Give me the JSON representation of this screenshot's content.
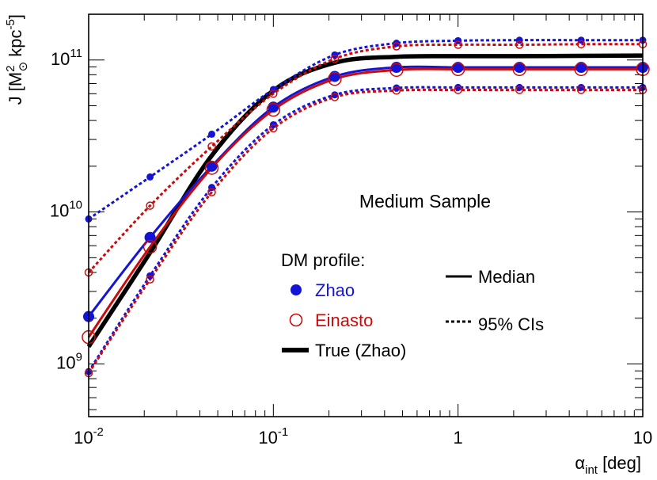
{
  "chart_data": {
    "type": "line",
    "title": "Medium Sample",
    "xscale": "log",
    "yscale": "log",
    "xlim": [
      0.01,
      10
    ],
    "ylim": [
      450000000,
      200000000000
    ],
    "xlabel": {
      "main": "α",
      "sub": "int",
      "rest": " [deg]"
    },
    "ylabel": {
      "pre": "J [M",
      "sup": "2",
      "sub": "⊙",
      "mid": " kpc",
      "sup2": "-5",
      "post": "]"
    },
    "xticks": [
      {
        "value": 0.01,
        "base": "10",
        "exp": "-2"
      },
      {
        "value": 0.1,
        "base": "10",
        "exp": "-1"
      },
      {
        "value": 1,
        "base": "1",
        "exp": ""
      },
      {
        "value": 10,
        "base": "10",
        "exp": ""
      }
    ],
    "yticks": [
      {
        "value": 1000000000,
        "base": "10",
        "exp": "9"
      },
      {
        "value": 10000000000,
        "base": "10",
        "exp": "10"
      },
      {
        "value": 100000000000,
        "base": "10",
        "exp": "11"
      }
    ],
    "x": [
      0.01,
      0.0215,
      0.0464,
      0.1,
      0.215,
      0.464,
      1,
      2.15,
      4.64,
      10
    ],
    "series": [
      {
        "name": "Zhao median",
        "profile": "Zhao",
        "kind": "median",
        "color": "#1414d8",
        "values": [
          2050000000.0,
          6800000000.0,
          20000000000.0,
          49000000000.0,
          78000000000.0,
          89500000000.0,
          89500000000.0,
          89500000000.0,
          89500000000.0,
          89500000000.0
        ]
      },
      {
        "name": "Zhao 95% CI upper",
        "profile": "Zhao",
        "kind": "ci",
        "color": "#1414d8",
        "values": [
          9000000000.0,
          17000000000.0,
          32500000000.0,
          64000000000.0,
          108000000000.0,
          129000000000.0,
          134000000000.0,
          135000000000.0,
          135000000000.0,
          135000000000.0
        ]
      },
      {
        "name": "Zhao 95% CI lower",
        "profile": "Zhao",
        "kind": "ci",
        "color": "#1414d8",
        "values": [
          890000000.0,
          3800000000.0,
          14500000000.0,
          37500000000.0,
          59000000000.0,
          65500000000.0,
          66000000000.0,
          66000000000.0,
          66000000000.0,
          66000000000.0
        ]
      },
      {
        "name": "Einasto median",
        "profile": "Einasto",
        "kind": "median",
        "color": "#cc0a0a",
        "values": [
          1500000000.0,
          5900000000.0,
          19500000000.0,
          47000000000.0,
          75000000000.0,
          86000000000.0,
          87000000000.0,
          87000000000.0,
          87000000000.0,
          87000000000.0
        ]
      },
      {
        "name": "Einasto 95% CI upper",
        "profile": "Einasto",
        "kind": "ci",
        "color": "#cc0a0a",
        "values": [
          4000000000.0,
          11000000000.0,
          27000000000.0,
          60000000000.0,
          102000000000.0,
          123000000000.0,
          126000000000.0,
          126000000000.0,
          127000000000.0,
          127000000000.0
        ]
      },
      {
        "name": "Einasto 95% CI lower",
        "profile": "Einasto",
        "kind": "ci",
        "color": "#cc0a0a",
        "values": [
          870000000.0,
          3600000000.0,
          13500000000.0,
          35500000000.0,
          57000000000.0,
          63000000000.0,
          63500000000.0,
          63500000000.0,
          63500000000.0,
          63500000000.0
        ]
      }
    ],
    "true_curve": {
      "name": "True (Zhao)",
      "color": "#000000",
      "x": [
        0.01,
        0.0215,
        0.0464,
        0.1,
        0.215,
        0.464,
        1,
        2.15,
        4.64,
        10
      ],
      "values": [
        1300000000.0,
        5400000000.0,
        23500000000.0,
        63000000000.0,
        96000000000.0,
        105000000000.0,
        106000000000.0,
        106000000000.0,
        106500000000.0,
        107000000000.0
      ]
    },
    "legend": {
      "header": "DM profile:",
      "zhao": "Zhao",
      "einasto": "Einasto",
      "true": "True (Zhao)",
      "median": "Median",
      "ci": "95% CIs"
    }
  }
}
